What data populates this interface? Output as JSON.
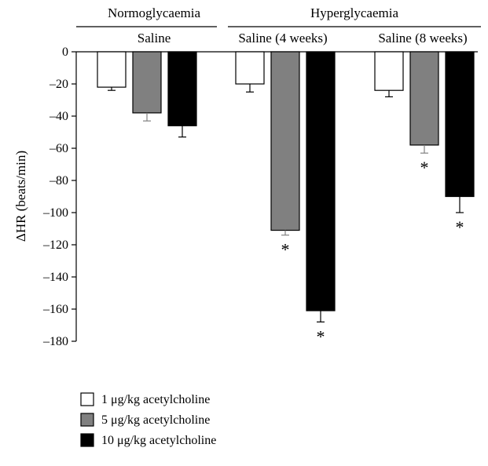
{
  "chart_data": {
    "type": "bar",
    "ylabel": "ΔHR (beats/min)",
    "ylim": [
      -180,
      0
    ],
    "yticks": [
      0,
      -20,
      -40,
      -60,
      -80,
      -100,
      -120,
      -140,
      -160,
      -180
    ],
    "ytick_labels": [
      "0",
      "–20",
      "–40",
      "–60",
      "–80",
      "–100",
      "–120",
      "–140",
      "–160",
      "–180"
    ],
    "top_groups": [
      {
        "label": "Normoglycaemia",
        "subgroups": [
          "Saline"
        ]
      },
      {
        "label": "Hyperglycaemia",
        "subgroups": [
          "Saline (4 weeks)",
          "Saline (8 weeks)"
        ]
      }
    ],
    "categories": [
      "Saline",
      "Saline (4 weeks)",
      "Saline (8 weeks)"
    ],
    "series": [
      {
        "name": "1 μg/kg acetylcholine",
        "values": [
          -22,
          -20,
          -24
        ],
        "errors": [
          2,
          5,
          4
        ],
        "significant": [
          false,
          false,
          false
        ],
        "color": "#ffffff"
      },
      {
        "name": "5 μg/kg acetylcholine",
        "values": [
          -38,
          -111,
          -58
        ],
        "errors": [
          5,
          3,
          5
        ],
        "significant": [
          false,
          true,
          true
        ],
        "color": "#808080"
      },
      {
        "name": "10 μg/kg acetylcholine",
        "values": [
          -46,
          -161,
          -90
        ],
        "errors": [
          7,
          7,
          10
        ],
        "significant": [
          false,
          true,
          true
        ],
        "color": "#000000"
      }
    ],
    "significance_marker": "*",
    "legend_position": "bottom-left",
    "grid": false
  }
}
